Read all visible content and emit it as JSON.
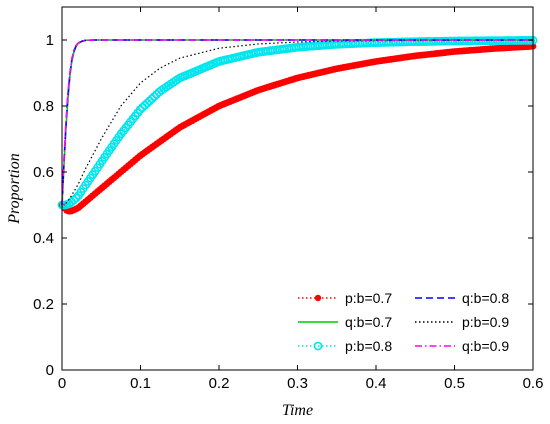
{
  "chart_data": {
    "type": "line",
    "xlabel": "Time",
    "ylabel": "Proportion",
    "xlim": [
      0,
      0.6
    ],
    "ylim": [
      0,
      1.1
    ],
    "xticks": [
      0,
      0.1,
      0.2,
      0.3,
      0.4,
      0.5,
      0.6
    ],
    "xtick_labels": [
      "0",
      "0.1",
      "0.2",
      "0.3",
      "0.4",
      "0.5",
      "0.6"
    ],
    "yticks": [
      0,
      0.2,
      0.4,
      0.6,
      0.8,
      1
    ],
    "ytick_labels": [
      "0",
      "0.2",
      "0.4",
      "0.6",
      "0.8",
      "1"
    ],
    "grid": false,
    "legend_position": "bottom-right",
    "series": [
      {
        "name": "p:b=0.7",
        "color": "#ff0000",
        "style": "dotted",
        "marker": "dot",
        "x": [
          0,
          0.005,
          0.01,
          0.02,
          0.03,
          0.05,
          0.075,
          0.1,
          0.15,
          0.2,
          0.25,
          0.3,
          0.35,
          0.4,
          0.45,
          0.5,
          0.55,
          0.6
        ],
        "y": [
          0.5,
          0.485,
          0.48,
          0.49,
          0.51,
          0.55,
          0.6,
          0.65,
          0.735,
          0.8,
          0.848,
          0.885,
          0.913,
          0.935,
          0.952,
          0.965,
          0.974,
          0.981
        ]
      },
      {
        "name": "q:b=0.7",
        "color": "#00cc00",
        "style": "solid",
        "marker": "none",
        "x": [
          0,
          0.0025,
          0.005,
          0.0075,
          0.01,
          0.0125,
          0.015,
          0.0175,
          0.02,
          0.025,
          0.03,
          0.04,
          0.05,
          0.6
        ],
        "y": [
          0.5,
          0.62,
          0.73,
          0.82,
          0.89,
          0.935,
          0.962,
          0.978,
          0.988,
          0.996,
          0.999,
          1,
          1,
          1
        ]
      },
      {
        "name": "p:b=0.8",
        "color": "#00e5ee",
        "style": "dotted",
        "marker": "circle",
        "x": [
          0,
          0.005,
          0.01,
          0.02,
          0.03,
          0.05,
          0.075,
          0.1,
          0.125,
          0.15,
          0.2,
          0.25,
          0.3,
          0.35,
          0.4,
          0.45,
          0.5,
          0.55,
          0.6
        ],
        "y": [
          0.5,
          0.5,
          0.505,
          0.525,
          0.56,
          0.63,
          0.715,
          0.79,
          0.845,
          0.885,
          0.935,
          0.963,
          0.978,
          0.987,
          0.992,
          0.995,
          0.997,
          0.998,
          0.999
        ]
      },
      {
        "name": "q:b=0.8",
        "color": "#0000ff",
        "style": "dashed",
        "marker": "none",
        "x": [
          0,
          0.0025,
          0.005,
          0.0075,
          0.01,
          0.0125,
          0.015,
          0.0175,
          0.02,
          0.025,
          0.03,
          0.04,
          0.05,
          0.6
        ],
        "y": [
          0.5,
          0.63,
          0.74,
          0.83,
          0.895,
          0.94,
          0.965,
          0.98,
          0.989,
          0.996,
          0.999,
          1,
          1,
          1
        ]
      },
      {
        "name": "p:b=0.9",
        "color": "#000000",
        "style": "dotted",
        "marker": "none",
        "x": [
          0,
          0.005,
          0.01,
          0.02,
          0.03,
          0.05,
          0.075,
          0.1,
          0.125,
          0.15,
          0.2,
          0.25,
          0.3,
          0.35,
          0.4,
          0.5,
          0.6
        ],
        "y": [
          0.5,
          0.505,
          0.52,
          0.56,
          0.61,
          0.7,
          0.8,
          0.87,
          0.915,
          0.945,
          0.975,
          0.988,
          0.994,
          0.997,
          0.998,
          0.999,
          1
        ]
      },
      {
        "name": "q:b=0.9",
        "color": "#ff00ff",
        "style": "dashdot",
        "marker": "none",
        "x": [
          0,
          0.0025,
          0.005,
          0.0075,
          0.01,
          0.0125,
          0.015,
          0.0175,
          0.02,
          0.025,
          0.03,
          0.04,
          0.05,
          0.6
        ],
        "y": [
          0.5,
          0.64,
          0.75,
          0.84,
          0.9,
          0.943,
          0.968,
          0.982,
          0.99,
          0.997,
          0.999,
          1,
          1,
          1
        ]
      }
    ]
  }
}
